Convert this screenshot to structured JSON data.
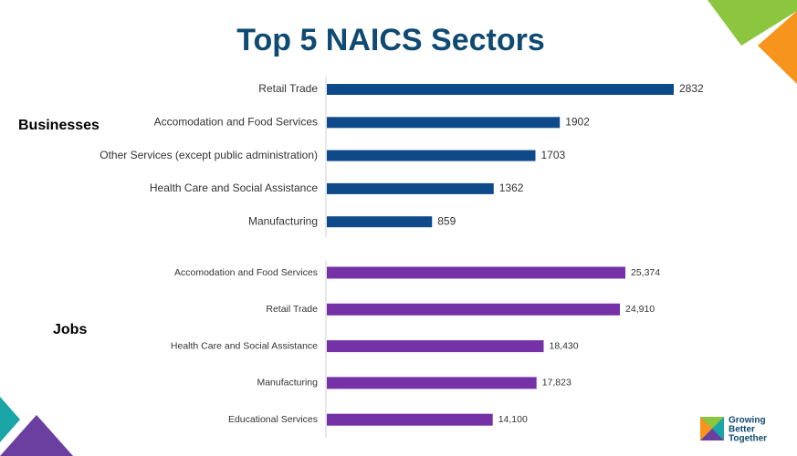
{
  "title": "Top 5 NAICS Sectors",
  "logo": [
    "Growing",
    "Better",
    "Together"
  ],
  "chart_data": [
    {
      "type": "bar",
      "orientation": "horizontal",
      "title": "Businesses",
      "color": "#0e4a8a",
      "categories": [
        "Retail Trade",
        "Accomodation and Food Services",
        "Other Services (except public administration)",
        "Health Care and Social Assistance",
        "Manufacturing"
      ],
      "values": [
        2832,
        1902,
        1703,
        1362,
        859
      ]
    },
    {
      "type": "bar",
      "orientation": "horizontal",
      "title": "Jobs",
      "color": "#7432a6",
      "categories": [
        "Accomodation and Food Services",
        "Retail Trade",
        "Health Care and Social Assistance",
        "Manufacturing",
        "Educational Services"
      ],
      "values": [
        25374,
        24910,
        18430,
        17823,
        14100
      ],
      "value_labels": [
        "25,374",
        "24,910",
        "18,430",
        "17,823",
        "14,100"
      ]
    }
  ]
}
